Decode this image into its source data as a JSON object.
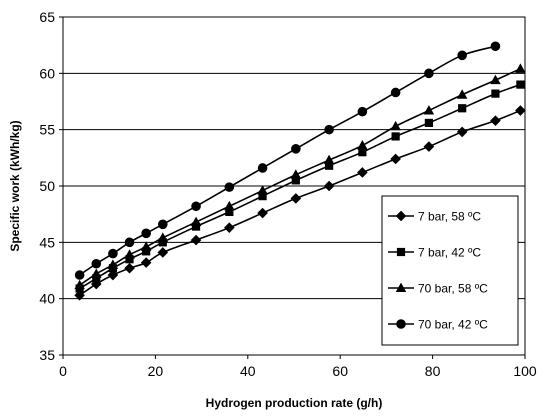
{
  "chart_data": {
    "type": "line",
    "title": "",
    "xlabel": "Hydrogen production rate (g/h)",
    "ylabel": "Specific work (kWh/kg)",
    "xlim": [
      0,
      100
    ],
    "ylim": [
      35,
      65
    ],
    "xticks": [
      0,
      20,
      40,
      60,
      80,
      100
    ],
    "yticks": [
      35,
      40,
      45,
      50,
      55,
      60,
      65
    ],
    "grid": "horizontal",
    "legend_position": "right",
    "series": [
      {
        "name": "7 bar, 58 ºC",
        "marker": "diamond",
        "color": "#000000",
        "points": [
          [
            3.6,
            40.3
          ],
          [
            7.2,
            41.3
          ],
          [
            10.8,
            42.1
          ],
          [
            14.4,
            42.7
          ],
          [
            18.0,
            43.2
          ],
          [
            21.6,
            44.1
          ],
          [
            28.8,
            45.2
          ],
          [
            36.0,
            46.3
          ],
          [
            43.2,
            47.6
          ],
          [
            50.4,
            48.9
          ],
          [
            57.6,
            50.0
          ],
          [
            64.8,
            51.2
          ],
          [
            72.0,
            52.4
          ],
          [
            79.2,
            53.5
          ],
          [
            86.4,
            54.8
          ],
          [
            93.6,
            55.8
          ],
          [
            99.0,
            56.7
          ]
        ]
      },
      {
        "name": "7 bar, 42 ºC",
        "marker": "square",
        "color": "#000000",
        "points": [
          [
            3.6,
            40.9
          ],
          [
            7.2,
            41.8
          ],
          [
            10.8,
            42.7
          ],
          [
            14.4,
            43.5
          ],
          [
            18.0,
            44.2
          ],
          [
            21.6,
            45.0
          ],
          [
            28.8,
            46.4
          ],
          [
            36.0,
            47.7
          ],
          [
            43.2,
            49.1
          ],
          [
            50.4,
            50.5
          ],
          [
            57.6,
            51.8
          ],
          [
            64.8,
            53.0
          ],
          [
            72.0,
            54.4
          ],
          [
            79.2,
            55.6
          ],
          [
            86.4,
            56.9
          ],
          [
            93.6,
            58.2
          ],
          [
            99.0,
            59.0
          ]
        ]
      },
      {
        "name": "70 bar, 58 ºC",
        "marker": "triangle",
        "color": "#000000",
        "points": [
          [
            3.6,
            41.2
          ],
          [
            7.2,
            42.2
          ],
          [
            10.8,
            43.0
          ],
          [
            14.4,
            43.9
          ],
          [
            18.0,
            44.6
          ],
          [
            21.6,
            45.4
          ],
          [
            28.8,
            46.8
          ],
          [
            36.0,
            48.2
          ],
          [
            43.2,
            49.6
          ],
          [
            50.4,
            51.0
          ],
          [
            57.6,
            52.3
          ],
          [
            64.8,
            53.6
          ],
          [
            72.0,
            55.3
          ],
          [
            79.2,
            56.7
          ],
          [
            86.4,
            58.1
          ],
          [
            93.6,
            59.4
          ],
          [
            99.0,
            60.4
          ]
        ]
      },
      {
        "name": "70 bar, 42 ºC",
        "marker": "circle",
        "color": "#000000",
        "points": [
          [
            3.6,
            42.1
          ],
          [
            7.2,
            43.1
          ],
          [
            10.8,
            44.0
          ],
          [
            14.4,
            45.0
          ],
          [
            18.0,
            45.8
          ],
          [
            21.6,
            46.6
          ],
          [
            28.8,
            48.2
          ],
          [
            36.0,
            49.9
          ],
          [
            43.2,
            51.6
          ],
          [
            50.4,
            53.3
          ],
          [
            57.6,
            55.0
          ],
          [
            64.8,
            56.6
          ],
          [
            72.0,
            58.3
          ],
          [
            79.2,
            60.0
          ],
          [
            86.4,
            61.6
          ],
          [
            93.6,
            62.4
          ]
        ]
      }
    ]
  }
}
